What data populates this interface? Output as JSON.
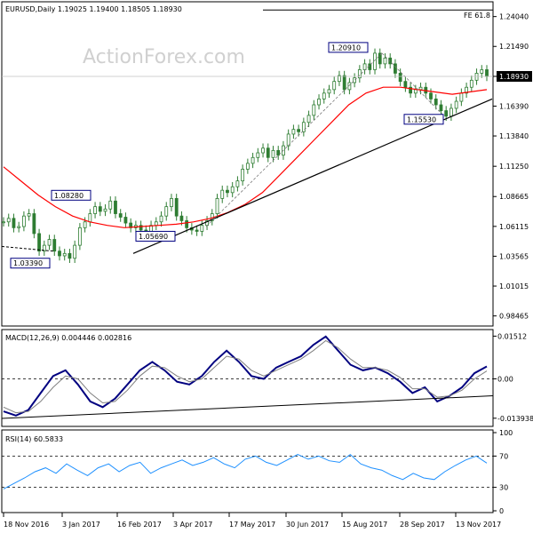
{
  "chart_data": [
    {
      "type": "candlestick",
      "panel": "price",
      "symbol_line": "EURUSD,Daily  1.19025 1.19400 1.18505 1.18930",
      "watermark": "ActionForex.com",
      "top_right_label": "FE 61.8",
      "last_price_label": "1.18930",
      "y_ticks": [
        "1.24040",
        "1.21490",
        "1.18930",
        "1.16390",
        "1.13840",
        "1.11250",
        "1.08665",
        "1.06115",
        "1.03565",
        "1.01015",
        "0.98465"
      ],
      "x_ticks": [
        "18 Nov 2016",
        "3 Jan 2017",
        "16 Feb 2017",
        "3 Apr 2017",
        "17 May 2017",
        "30 Jun 2017",
        "15 Aug 2017",
        "28 Sep 2017",
        "13 Nov 2017"
      ],
      "ylim": [
        0.9783,
        1.25
      ],
      "annotations": [
        {
          "text": "1.08280",
          "value": 1.0828
        },
        {
          "text": "1.05690",
          "value": 1.0569
        },
        {
          "text": "1.03390",
          "value": 1.0339
        },
        {
          "text": "1.20910",
          "value": 1.2091
        },
        {
          "text": "1.15530",
          "value": 1.1553
        }
      ],
      "closes": [
        1.065,
        1.068,
        1.06,
        1.061,
        1.07,
        1.072,
        1.055,
        1.04,
        1.045,
        1.05,
        1.04,
        1.036,
        1.038,
        1.0339,
        1.045,
        1.06,
        1.065,
        1.072,
        1.078,
        1.074,
        1.076,
        1.0828,
        1.072,
        1.069,
        1.064,
        1.06,
        1.062,
        1.058,
        1.056,
        1.062,
        1.065,
        1.07,
        1.078,
        1.085,
        1.07,
        1.066,
        1.06,
        1.058,
        1.0569,
        1.062,
        1.066,
        1.072,
        1.085,
        1.092,
        1.09,
        1.095,
        1.1,
        1.11,
        1.115,
        1.12,
        1.124,
        1.128,
        1.12,
        1.126,
        1.122,
        1.13,
        1.14,
        1.144,
        1.142,
        1.15,
        1.156,
        1.165,
        1.17,
        1.175,
        1.178,
        1.185,
        1.19,
        1.178,
        1.184,
        1.188,
        1.195,
        1.2,
        1.195,
        1.2091,
        1.2,
        1.205,
        1.2,
        1.192,
        1.185,
        1.18,
        1.175,
        1.178,
        1.18,
        1.175,
        1.17,
        1.165,
        1.16,
        1.1553,
        1.162,
        1.168,
        1.175,
        1.18,
        1.186,
        1.192,
        1.195,
        1.1893
      ],
      "sma_series": [
        {
          "name": "",
          "color": "#ff0000",
          "values": [
            1.112,
            1.1,
            1.088,
            1.078,
            1.07,
            1.065,
            1.062,
            1.06,
            1.061,
            1.062,
            1.063,
            1.065,
            1.068,
            1.073,
            1.08,
            1.09,
            1.105,
            1.12,
            1.135,
            1.15,
            1.165,
            1.175,
            1.18,
            1.18,
            1.178,
            1.176,
            1.174,
            1.176,
            1.178
          ]
        }
      ],
      "trendlines": [
        {
          "from": [
            "16 Feb 2017",
            1.038
          ],
          "to": [
            "end",
            1.17
          ]
        },
        {
          "from": [
            "start",
            1.044
          ],
          "to": [
            "18 Nov 2016 +",
            1.04
          ]
        },
        {
          "from": [
            "25 Oct 2017",
            1.246
          ],
          "to": [
            "end",
            1.246
          ]
        }
      ]
    },
    {
      "type": "line",
      "panel": "macd",
      "label": "MACD(12,26,9) 0.004446 0.002816",
      "y_ticks": [
        "0.01512",
        "0.00",
        "-0.013938"
      ],
      "ylim": [
        -0.0162,
        0.0165
      ],
      "series": [
        {
          "name": "",
          "color": "#000080",
          "values": [
            -0.0115,
            -0.013,
            -0.011,
            -0.005,
            0.001,
            0.003,
            -0.002,
            -0.008,
            -0.01,
            -0.007,
            -0.002,
            0.003,
            0.006,
            0.003,
            -0.001,
            -0.002,
            0.001,
            0.006,
            0.01,
            0.006,
            0.001,
            0.0,
            0.004,
            0.006,
            0.008,
            0.012,
            0.015,
            0.01,
            0.005,
            0.003,
            0.004,
            0.002,
            -0.001,
            -0.005,
            -0.003,
            -0.008,
            -0.006,
            -0.003,
            0.002,
            0.0044
          ]
        },
        {
          "name": "",
          "color": "#808080",
          "values": [
            -0.01,
            -0.012,
            -0.0115,
            -0.008,
            -0.003,
            0.001,
            0.0,
            -0.005,
            -0.0085,
            -0.008,
            -0.004,
            0.001,
            0.0045,
            0.004,
            0.001,
            -0.001,
            0.0,
            0.004,
            0.008,
            0.007,
            0.003,
            0.001,
            0.003,
            0.005,
            0.007,
            0.01,
            0.0135,
            0.011,
            0.007,
            0.004,
            0.004,
            0.003,
            0.0005,
            -0.0035,
            -0.0035,
            -0.0065,
            -0.006,
            -0.004,
            0.0,
            0.0028
          ]
        }
      ],
      "trendlines": [
        {
          "from": [
            "start",
            -0.014
          ],
          "to": [
            "end",
            -0.006
          ]
        }
      ]
    },
    {
      "type": "line",
      "panel": "rsi",
      "label": "RSI(14) 60.5833",
      "y_ticks": [
        "100",
        "70",
        "30",
        "0"
      ],
      "ylim": [
        0,
        100
      ],
      "levels": [
        70,
        30
      ],
      "series": [
        {
          "name": "",
          "color": "#1e90ff",
          "values": [
            28,
            35,
            42,
            50,
            55,
            48,
            60,
            52,
            45,
            55,
            60,
            50,
            58,
            62,
            48,
            55,
            60,
            65,
            58,
            62,
            68,
            60,
            55,
            66,
            70,
            62,
            58,
            65,
            72,
            66,
            70,
            64,
            62,
            72,
            60,
            55,
            52,
            45,
            40,
            48,
            42,
            40,
            50,
            58,
            65,
            70,
            61
          ]
        }
      ]
    }
  ]
}
